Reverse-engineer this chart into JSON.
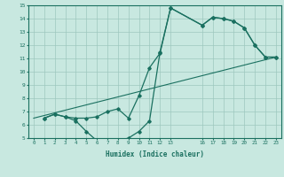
{
  "xlabel": "Humidex (Indice chaleur)",
  "ylabel": "",
  "bg_color": "#c8e8e0",
  "line_color": "#1a7060",
  "grid_color": "#9dc8be",
  "line1_x": [
    1,
    2,
    3,
    4,
    5,
    6,
    7,
    8,
    9,
    10,
    11,
    12,
    13,
    16,
    17,
    18,
    19,
    20,
    21,
    22,
    23
  ],
  "line1_y": [
    6.5,
    6.8,
    6.6,
    6.3,
    5.5,
    4.8,
    4.8,
    4.8,
    5.0,
    5.5,
    6.3,
    11.5,
    14.8,
    13.5,
    14.1,
    14.0,
    13.8,
    13.3,
    12.0,
    11.1,
    11.1
  ],
  "line2_x": [
    1,
    2,
    3,
    4,
    5,
    6,
    7,
    8,
    9,
    10,
    11,
    12,
    13,
    16,
    17,
    18,
    19,
    20,
    21,
    22,
    23
  ],
  "line2_y": [
    6.5,
    6.8,
    6.6,
    6.5,
    6.5,
    6.6,
    7.0,
    7.2,
    6.5,
    8.2,
    10.3,
    11.4,
    14.8,
    13.5,
    14.1,
    14.0,
    13.8,
    13.3,
    12.0,
    11.1,
    11.1
  ],
  "line3_x": [
    0,
    23
  ],
  "line3_y": [
    6.5,
    11.1
  ],
  "xlim": [
    -0.5,
    23.5
  ],
  "ylim": [
    5,
    15
  ],
  "xticks": [
    0,
    1,
    2,
    3,
    4,
    5,
    6,
    7,
    8,
    9,
    10,
    11,
    12,
    13,
    16,
    17,
    18,
    19,
    20,
    21,
    22,
    23
  ],
  "yticks": [
    5,
    6,
    7,
    8,
    9,
    10,
    11,
    12,
    13,
    14,
    15
  ]
}
